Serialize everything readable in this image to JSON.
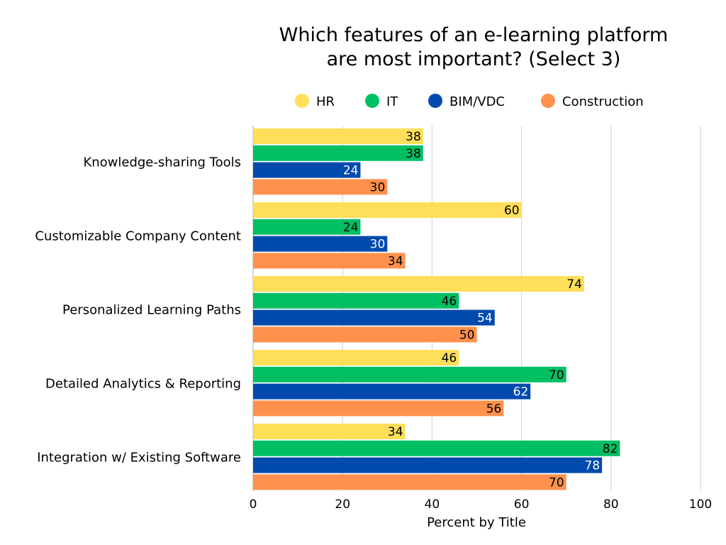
{
  "chart_data": {
    "type": "bar",
    "orientation": "horizontal",
    "title": [
      "Which features of an e-learning platform",
      "are most important? (Select 3)"
    ],
    "xlabel": "Percent by Title",
    "ylabel": "",
    "xlim": [
      0,
      100
    ],
    "xticks": [
      0,
      20,
      40,
      60,
      80,
      100
    ],
    "grid": true,
    "legend_position": "top",
    "categories": [
      "Knowledge-sharing Tools",
      "Customizable Company Content",
      "Personalized Learning Paths",
      "Detailed Analytics & Reporting",
      "Integration w/ Existing Software"
    ],
    "series": [
      {
        "name": "HR",
        "color": "#FFDE59",
        "label_color": "#000000",
        "values": [
          38,
          60,
          74,
          46,
          34
        ]
      },
      {
        "name": "IT",
        "color": "#00BF63",
        "label_color": "#000000",
        "values": [
          38,
          24,
          46,
          70,
          82
        ]
      },
      {
        "name": "BIM/VDC",
        "color": "#004AAD",
        "label_color": "#FFFFFF",
        "values": [
          24,
          30,
          54,
          62,
          78
        ]
      },
      {
        "name": "Construction",
        "color": "#FF914D",
        "label_color": "#000000",
        "values": [
          30,
          34,
          50,
          56,
          70
        ]
      }
    ]
  }
}
